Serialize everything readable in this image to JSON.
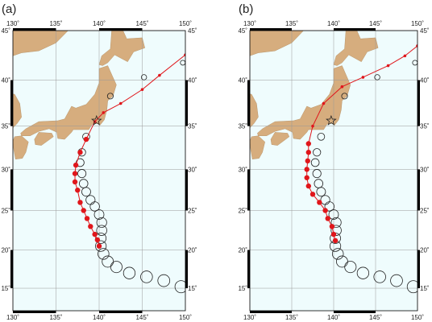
{
  "panels": [
    {
      "label": "(a)",
      "track": [
        [
          140.0,
          20.5
        ],
        [
          139.8,
          21.3
        ],
        [
          139.5,
          22.0
        ],
        [
          139.0,
          23.0
        ],
        [
          138.6,
          24.0
        ],
        [
          138.2,
          25.0
        ],
        [
          137.8,
          26.0
        ],
        [
          137.5,
          27.5
        ],
        [
          137.2,
          28.5
        ],
        [
          137.2,
          29.5
        ],
        [
          137.3,
          30.5
        ],
        [
          137.8,
          32.0
        ],
        [
          138.5,
          33.5
        ],
        [
          139.5,
          35.5
        ],
        [
          140.5,
          36.5
        ],
        [
          142.5,
          37.5
        ],
        [
          145.0,
          39.0
        ],
        [
          147.0,
          40.5
        ],
        [
          150.0,
          42.6
        ]
      ]
    },
    {
      "label": "(b)",
      "track": [
        [
          140.2,
          21.2
        ],
        [
          140.0,
          22.0
        ],
        [
          139.8,
          23.0
        ],
        [
          139.3,
          24.0
        ],
        [
          139.0,
          25.0
        ],
        [
          138.3,
          26.0
        ],
        [
          137.5,
          27.0
        ],
        [
          137.0,
          28.0
        ],
        [
          136.8,
          29.0
        ],
        [
          136.8,
          30.0
        ],
        [
          136.9,
          31.0
        ],
        [
          137.0,
          32.0
        ],
        [
          137.0,
          33.0
        ],
        [
          137.5,
          35.0
        ],
        [
          138.8,
          37.5
        ],
        [
          141.0,
          39.3
        ],
        [
          143.5,
          40.3
        ],
        [
          146.5,
          41.5
        ],
        [
          148.5,
          42.5
        ],
        [
          150.0,
          43.5
        ]
      ]
    }
  ],
  "observed": [
    [
      149.5,
      15.2
    ],
    [
      147.5,
      16.0
    ],
    [
      145.5,
      16.5
    ],
    [
      143.5,
      17.0
    ],
    [
      142.0,
      17.8
    ],
    [
      141.0,
      18.5
    ],
    [
      140.5,
      19.5
    ],
    [
      140.2,
      20.5
    ],
    [
      140.2,
      21.5
    ],
    [
      140.3,
      22.5
    ],
    [
      140.3,
      23.5
    ],
    [
      140.0,
      24.5
    ],
    [
      139.5,
      25.5
    ],
    [
      139.0,
      26.3
    ],
    [
      138.5,
      27.3
    ],
    [
      138.2,
      28.3
    ],
    [
      138.0,
      29.5
    ],
    [
      137.8,
      30.8
    ],
    [
      138.0,
      32.0
    ],
    [
      138.5,
      33.8
    ],
    [
      141.3,
      38.3
    ],
    [
      145.2,
      40.3
    ],
    [
      149.7,
      41.8
    ]
  ],
  "star": [
    139.7,
    35.6
  ],
  "lon_ticks": [
    {
      "value": 130,
      "label": "130˚"
    },
    {
      "value": 135,
      "label": "135˚"
    },
    {
      "value": 140,
      "label": "140˚"
    },
    {
      "value": 145,
      "label": "145˚"
    },
    {
      "value": 150,
      "label": "150˚"
    }
  ],
  "lat_ticks": [
    {
      "value": 15,
      "label": "15˚"
    },
    {
      "value": 20,
      "label": "20˚"
    },
    {
      "value": 25,
      "label": "25˚"
    },
    {
      "value": 30,
      "label": "30˚"
    },
    {
      "value": 35,
      "label": "35˚"
    },
    {
      "value": 40,
      "label": "40˚"
    },
    {
      "value": 45,
      "label": "45˚"
    }
  ]
}
